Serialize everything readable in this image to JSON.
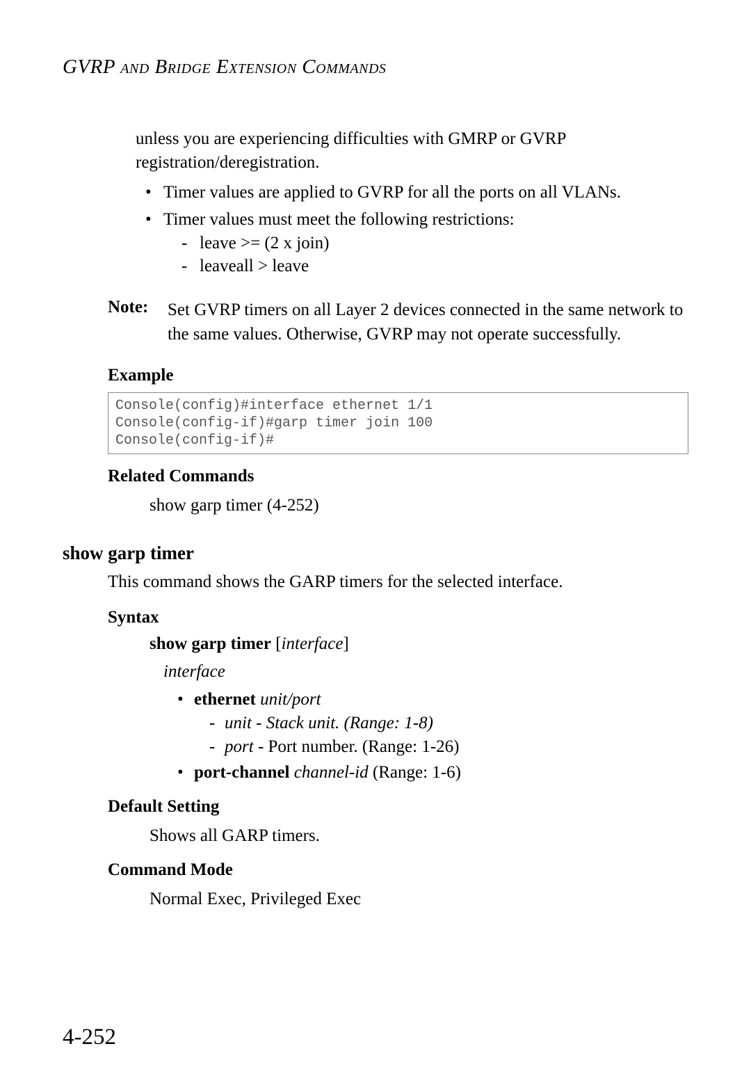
{
  "header": {
    "title": "GVRP and Bridge Extension Commands"
  },
  "intro": {
    "continuation": "unless you are experiencing difficulties with GMRP or GVRP registration/deregistration.",
    "bullets": [
      "Timer values are applied to GVRP for all the ports on all VLANs.",
      "Timer values must meet the following restrictions:"
    ],
    "sub_dashes": [
      "leave >= (2 x join)",
      "leaveall > leave"
    ]
  },
  "note": {
    "label": "Note:",
    "text": "Set GVRP timers on all Layer 2 devices connected in the same network to the same values. Otherwise, GVRP may not operate successfully."
  },
  "example": {
    "label": "Example",
    "code": "Console(config)#interface ethernet 1/1\nConsole(config-if)#garp timer join 100\nConsole(config-if)#"
  },
  "related": {
    "label": "Related Commands",
    "text": "show garp timer (4-252)"
  },
  "command": {
    "title": "show garp timer",
    "description": "This command shows the GARP timers for the selected interface."
  },
  "syntax": {
    "label": "Syntax",
    "cmd_bold": "show garp timer",
    "cmd_param": "interface",
    "interface_label": "interface",
    "ethernet_bold": "ethernet",
    "ethernet_param": "unit/port",
    "unit_label": "unit",
    "unit_desc": " - Stack unit. (Range: 1-8)",
    "port_label": "port",
    "port_desc": " - Port number. (Range: 1-26)",
    "portchannel_bold": "port-channel",
    "portchannel_param": "channel-id",
    "portchannel_range": " (Range: 1-6)"
  },
  "default": {
    "label": "Default Setting",
    "text": "Shows all GARP timers."
  },
  "mode": {
    "label": "Command Mode",
    "text": "Normal Exec, Privileged Exec"
  },
  "page_number": "4-252"
}
